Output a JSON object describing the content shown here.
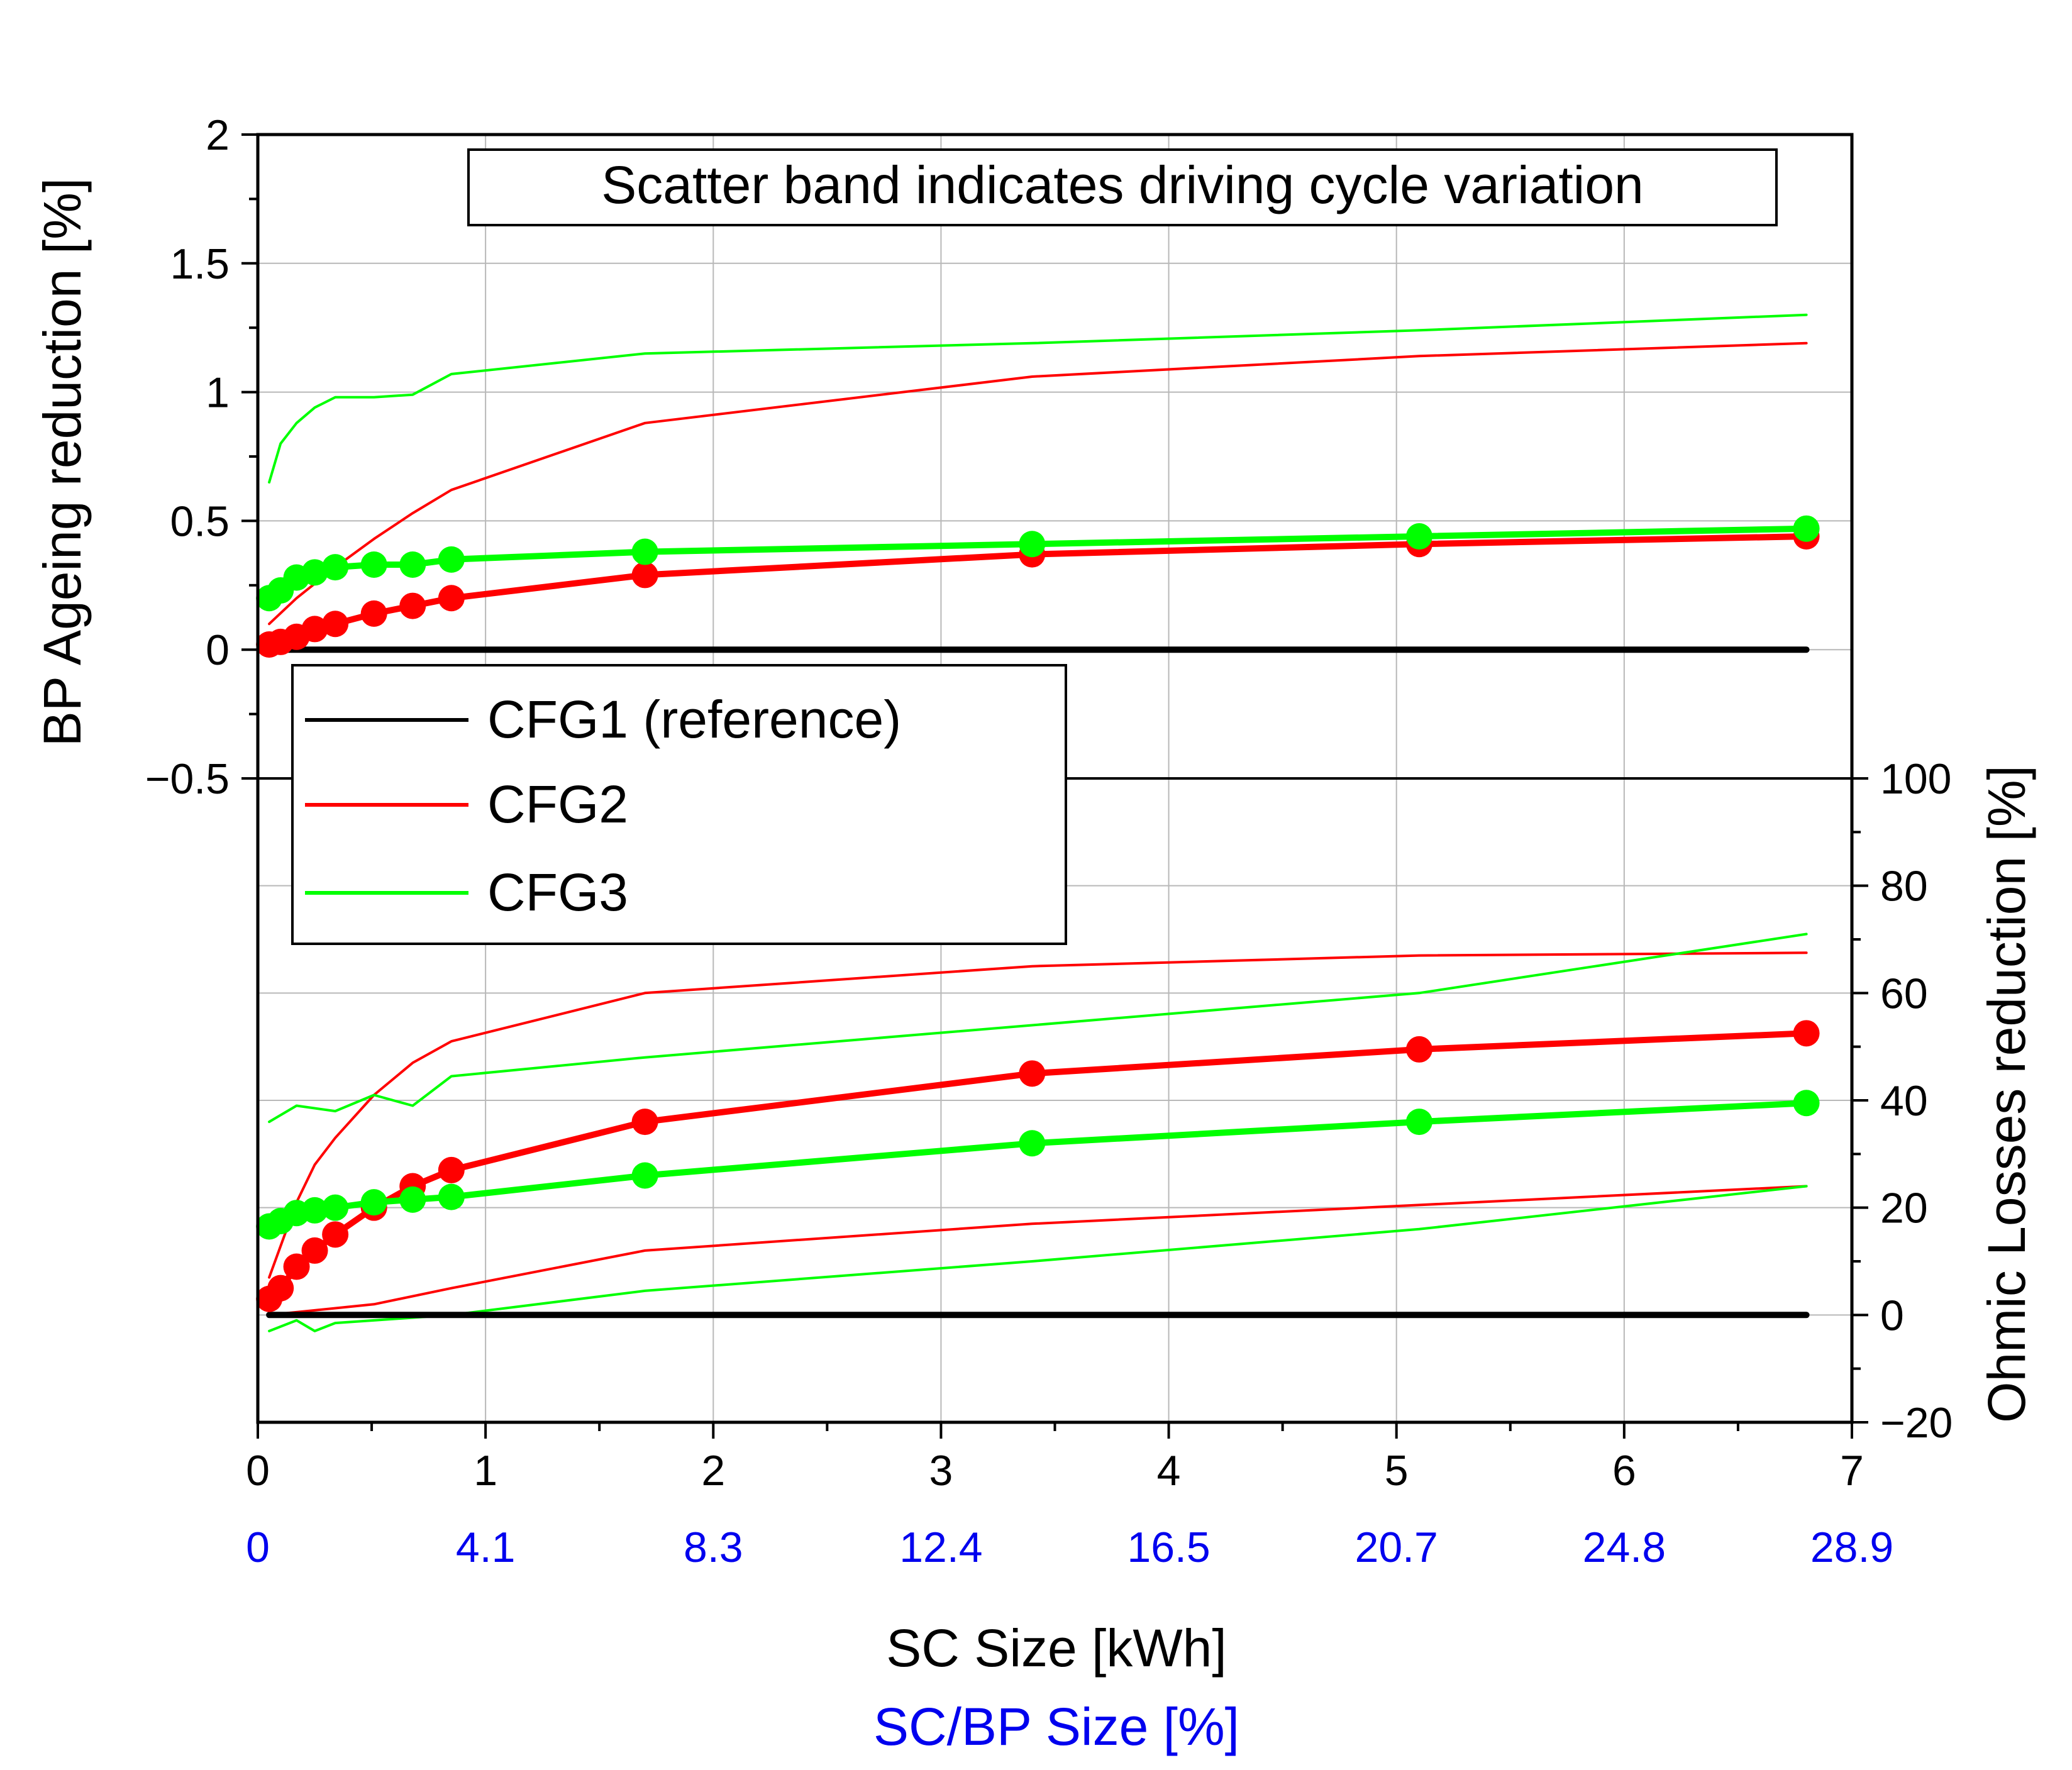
{
  "chart_data": {
    "type": "line",
    "annotation": "Scatter band indicates driving cycle variation",
    "legend": {
      "position": "middle-left",
      "entries": [
        {
          "name": "CFG1 (reference)",
          "color": "#000000"
        },
        {
          "name": "CFG2",
          "color": "#ff0000"
        },
        {
          "name": "CFG3",
          "color": "#00ff00"
        }
      ]
    },
    "x_axis": {
      "label": "SC Size [kWh]",
      "range": [
        0,
        7
      ],
      "ticks": [
        "0",
        "1",
        "2",
        "3",
        "4",
        "5",
        "6",
        "7"
      ]
    },
    "x2_axis": {
      "label": "SC/BP Size [%]",
      "color": "#0000ee",
      "ticks": [
        "0",
        "4.1",
        "8.3",
        "12.4",
        "16.5",
        "20.7",
        "24.8",
        "28.9"
      ]
    },
    "panels": [
      {
        "name": "top",
        "ylabel": "BP Ageing reduction [%]",
        "ylim": [
          -0.5,
          2
        ],
        "yticks": [
          "−0.5",
          "0",
          "0.5",
          "1",
          "1.5",
          "2"
        ],
        "series": [
          {
            "name": "CFG1 (reference)",
            "kind": "mean",
            "color": "#000000",
            "x": [
              0.05,
              6.8
            ],
            "y": [
              0,
              0
            ]
          },
          {
            "name": "CFG2",
            "kind": "mean",
            "color": "#ff0000",
            "x": [
              0.05,
              0.1,
              0.17,
              0.25,
              0.34,
              0.51,
              0.68,
              0.85,
              1.7,
              3.4,
              5.1,
              6.8
            ],
            "y": [
              0.02,
              0.03,
              0.05,
              0.08,
              0.1,
              0.14,
              0.17,
              0.2,
              0.29,
              0.37,
              0.41,
              0.44
            ]
          },
          {
            "name": "CFG3",
            "kind": "mean",
            "color": "#00ff00",
            "x": [
              0.05,
              0.1,
              0.17,
              0.25,
              0.34,
              0.51,
              0.68,
              0.85,
              1.7,
              3.4,
              5.1,
              6.8
            ],
            "y": [
              0.2,
              0.23,
              0.28,
              0.3,
              0.32,
              0.33,
              0.33,
              0.35,
              0.38,
              0.41,
              0.44,
              0.47
            ]
          },
          {
            "name": "CFG2",
            "kind": "band-upper",
            "color": "#ff0000",
            "x": [
              0.05,
              0.17,
              0.34,
              0.51,
              0.68,
              0.85,
              1.7,
              3.4,
              5.1,
              6.8
            ],
            "y": [
              0.1,
              0.2,
              0.32,
              0.43,
              0.53,
              0.62,
              0.88,
              1.06,
              1.14,
              1.19
            ]
          },
          {
            "name": "CFG3",
            "kind": "band-upper",
            "color": "#00ff00",
            "x": [
              0.05,
              0.1,
              0.17,
              0.25,
              0.34,
              0.51,
              0.68,
              0.85,
              1.7,
              3.4,
              5.1,
              6.8
            ],
            "y": [
              0.65,
              0.8,
              0.88,
              0.94,
              0.98,
              0.98,
              0.99,
              1.07,
              1.15,
              1.19,
              1.24,
              1.3
            ]
          }
        ]
      },
      {
        "name": "bottom",
        "ylabel": "Ohmic Losses reduction [%]",
        "ylim": [
          -20,
          100
        ],
        "yticks": [
          "−20",
          "0",
          "20",
          "40",
          "60",
          "80",
          "100"
        ],
        "series": [
          {
            "name": "CFG1 (reference)",
            "kind": "mean",
            "color": "#000000",
            "x": [
              0.05,
              6.8
            ],
            "y": [
              0,
              0
            ]
          },
          {
            "name": "CFG2",
            "kind": "mean",
            "color": "#ff0000",
            "x": [
              0.05,
              0.1,
              0.17,
              0.25,
              0.34,
              0.51,
              0.68,
              0.85,
              1.7,
              3.4,
              5.1,
              6.8
            ],
            "y": [
              3,
              5,
              9,
              12,
              15,
              20,
              24,
              27,
              36,
              45,
              49.5,
              52.5
            ]
          },
          {
            "name": "CFG3",
            "kind": "mean",
            "color": "#00ff00",
            "x": [
              0.05,
              0.1,
              0.17,
              0.25,
              0.34,
              0.51,
              0.68,
              0.85,
              1.7,
              3.4,
              5.1,
              6.8
            ],
            "y": [
              16.5,
              17.5,
              19,
              19.5,
              20,
              21,
              21.5,
              22,
              26,
              32,
              36,
              39.5
            ]
          },
          {
            "name": "CFG2",
            "kind": "band-upper",
            "color": "#ff0000",
            "x": [
              0.05,
              0.17,
              0.25,
              0.34,
              0.51,
              0.68,
              0.85,
              1.7,
              3.4,
              5.1,
              6.8
            ],
            "y": [
              7,
              21,
              28,
              33,
              41,
              47,
              51,
              60,
              65,
              67,
              67.5
            ]
          },
          {
            "name": "CFG2",
            "kind": "band-lower",
            "color": "#ff0000",
            "x": [
              0.05,
              0.51,
              0.85,
              1.7,
              3.4,
              5.1,
              6.8
            ],
            "y": [
              0,
              2,
              5,
              12,
              17,
              20.5,
              24
            ]
          },
          {
            "name": "CFG3",
            "kind": "band-upper",
            "color": "#00ff00",
            "x": [
              0.05,
              0.17,
              0.34,
              0.51,
              0.68,
              0.85,
              1.7,
              3.4,
              5.1,
              6.8
            ],
            "y": [
              36,
              39,
              38,
              41,
              39,
              44.5,
              48,
              54,
              60,
              71
            ]
          },
          {
            "name": "CFG3",
            "kind": "band-lower",
            "color": "#00ff00",
            "x": [
              0.05,
              0.17,
              0.25,
              0.34,
              0.51,
              0.85,
              1.7,
              3.4,
              5.1,
              6.8
            ],
            "y": [
              -3,
              -1,
              -3,
              -1.5,
              -1,
              0,
              4.5,
              10,
              16,
              24
            ]
          }
        ]
      }
    ]
  }
}
